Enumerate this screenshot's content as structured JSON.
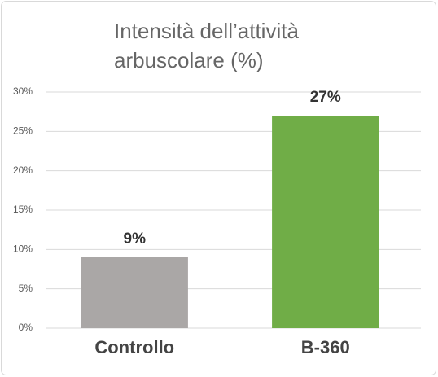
{
  "chart_data": {
    "type": "bar",
    "title": "Intensità dell’attività arbuscolare (%)",
    "categories": [
      "Controllo",
      "B-360"
    ],
    "values": [
      9,
      27
    ],
    "value_labels": [
      "9%",
      "27%"
    ],
    "colors": [
      "#aaa7a6",
      "#70ad47"
    ],
    "ylim": [
      0,
      30
    ],
    "yticks": [
      {
        "value": 0,
        "label": "0%"
      },
      {
        "value": 5,
        "label": "5%"
      },
      {
        "value": 10,
        "label": "10%"
      },
      {
        "value": 15,
        "label": "15%"
      },
      {
        "value": 20,
        "label": "20%"
      },
      {
        "value": 25,
        "label": "25%"
      },
      {
        "value": 30,
        "label": "30%"
      }
    ],
    "grid": true
  }
}
